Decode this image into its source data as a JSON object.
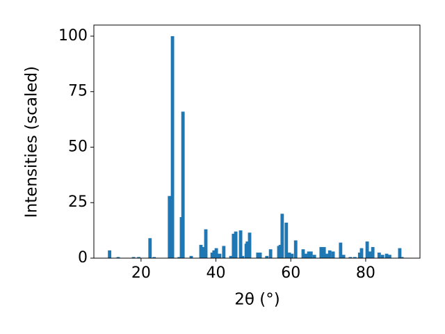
{
  "chart_data": {
    "type": "bar",
    "color": "#1f77b4",
    "grid": false,
    "xlabel": "2θ (°)",
    "ylabel": "Intensities (scaled)",
    "x": [
      11.6,
      13.9,
      18.0,
      19.4,
      22.4,
      23.5,
      27.6,
      28.4,
      30.2,
      30.8,
      31.2,
      33.4,
      36.0,
      36.5,
      37.3,
      39.0,
      39.5,
      40.1,
      41.0,
      42.1,
      44.0,
      44.7,
      45.3,
      46.6,
      47.1,
      48.1,
      48.4,
      49.0,
      51.2,
      51.8,
      53.6,
      54.6,
      56.8,
      57.2,
      57.7,
      58.8,
      59.6,
      60.3,
      61.3,
      63.3,
      64.1,
      64.8,
      65.4,
      66.3,
      68.1,
      68.9,
      69.6,
      70.4,
      71.3,
      73.3,
      74.1,
      75.9,
      77.1,
      78.4,
      78.9,
      80.4,
      81.2,
      81.9,
      83.6,
      84.5,
      85.6,
      86.4,
      89.1,
      89.7
    ],
    "values": [
      3.5,
      0.5,
      0.5,
      0.5,
      9,
      0.5,
      28,
      100,
      0.5,
      18.5,
      66,
      1,
      6,
      5,
      13,
      2.5,
      3.5,
      4.5,
      2,
      5.5,
      1,
      11,
      12,
      12.5,
      1,
      6.5,
      7.5,
      11.5,
      2.5,
      2.5,
      1,
      4,
      5.5,
      6,
      20,
      16,
      2.5,
      2,
      8,
      4,
      2,
      3,
      3,
      1.5,
      5,
      5,
      2,
      3.5,
      3,
      7,
      1.5,
      0.5,
      0.5,
      2.5,
      4.5,
      7.5,
      3,
      5,
      2.5,
      1.5,
      2,
      1.5,
      4.5,
      0.5
    ],
    "xlim": [
      7.4,
      94.5
    ],
    "xticks": [
      20,
      40,
      60,
      80
    ],
    "ylim": [
      0,
      105
    ],
    "yticks": [
      0,
      25,
      50,
      75,
      100
    ]
  }
}
